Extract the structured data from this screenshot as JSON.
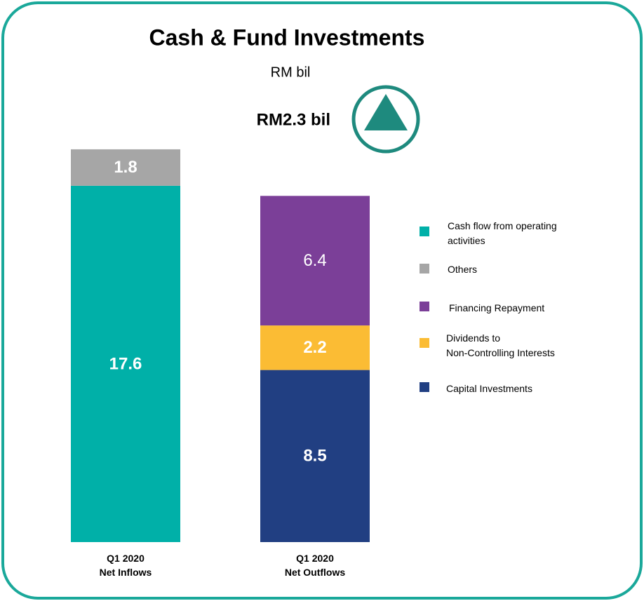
{
  "chart_data": {
    "type": "stacked-bar",
    "title": "Cash & Fund Investments",
    "subtitle": "RM bil",
    "annotation": "RM2.3 bil",
    "categories": [
      "Q1 2020\nNet Inflows",
      "Q1 2020\nNet Outflows"
    ],
    "series": [
      {
        "name": "Cash flow from operating\nactivities",
        "color": "#00b0a8",
        "values": [
          17.6,
          null
        ]
      },
      {
        "name": "Others",
        "color": "#a6a6a6",
        "values": [
          1.8,
          null
        ]
      },
      {
        "name": "Financing Repayment",
        "color": "#7b3f98",
        "values": [
          null,
          6.4
        ]
      },
      {
        "name": "Dividends to\nNon-Controlling Interests",
        "color": "#fbbc34",
        "values": [
          null,
          2.2
        ]
      },
      {
        "name": "Capital Investments",
        "color": "#213f82",
        "values": [
          null,
          8.5
        ]
      }
    ]
  }
}
